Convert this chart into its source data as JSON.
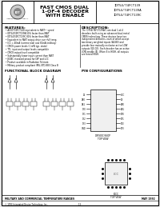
{
  "title_main": "FAST CMOS DUAL",
  "title_sub1": "1-OF-4 DECODER",
  "title_sub2": "WITH ENABLE",
  "company": "Integrated Device Technology, Inc.",
  "features_title": "FEATURES:",
  "desc_title": "DESCRIPTION:",
  "func_title": "FUNCTIONAL BLOCK DIAGRAM",
  "pin_title": "PIN CONFIGURATIONS",
  "footer_left": "MILITARY AND COMMERCIAL TEMPERATURE RANGES",
  "footer_right": "MAY 1992",
  "footer_company": "© 1993 Integrated Device Technology, Inc.",
  "footer_page": "1-3",
  "bg_color": "#e8e8e8",
  "border_color": "#000000",
  "text_color": "#000000"
}
